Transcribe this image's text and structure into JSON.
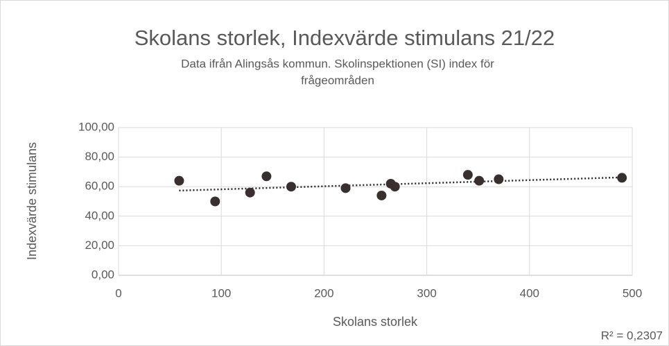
{
  "chart_data": {
    "type": "scatter",
    "title": "Skolans storlek, Indexvärde stimulans 21/22",
    "subtitle": [
      "Data ifrån Alingsås kommun. Skolinspektionen (SI) index för",
      "frågeområden"
    ],
    "x_label": "Skolans storlek",
    "y_label": "Indexvärde stimulans",
    "annotation": "R² = 0,2307",
    "x": [
      59,
      94,
      128,
      144,
      168,
      221,
      256,
      265,
      269,
      340,
      351,
      370,
      490
    ],
    "values": [
      64,
      50,
      56,
      67,
      60,
      59,
      54,
      62,
      60,
      68,
      64,
      65,
      66
    ],
    "color": "#3a2f2f",
    "trendline": "linear",
    "xlim": [
      0,
      500
    ],
    "xticks": [
      0,
      100,
      200,
      300,
      400,
      500
    ],
    "ylim": [
      0,
      100
    ],
    "yticks": [
      {
        "value": 0,
        "label": "0,00"
      },
      {
        "value": 20,
        "label": "20,00"
      },
      {
        "value": 40,
        "label": "40,00"
      },
      {
        "value": 60,
        "label": "60,00"
      },
      {
        "value": 80,
        "label": "80,00"
      },
      {
        "value": 100,
        "label": "100,00"
      }
    ],
    "grid": true
  }
}
